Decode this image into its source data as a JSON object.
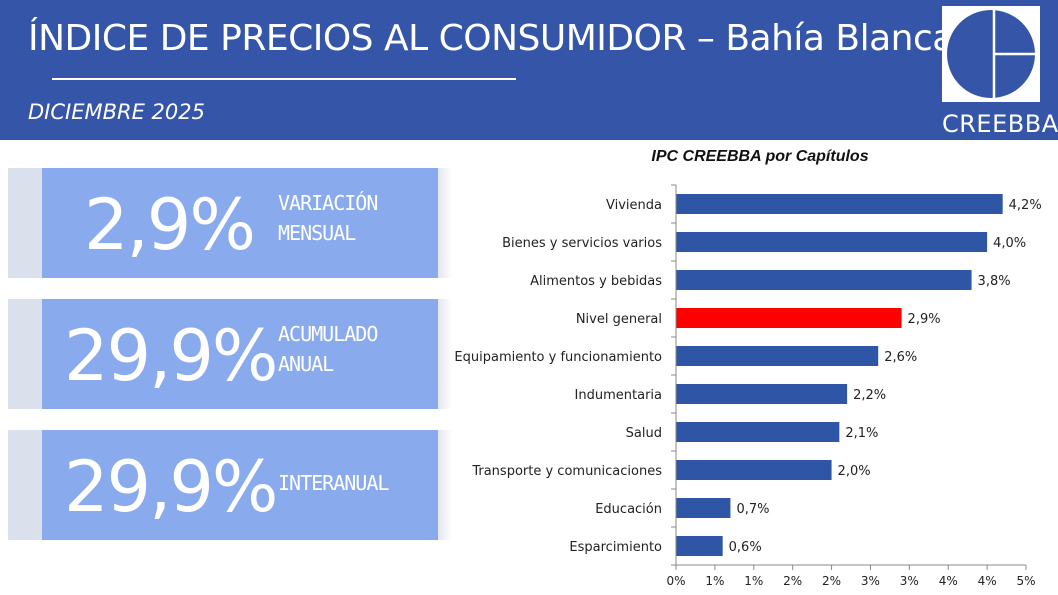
{
  "header": {
    "title": "ÍNDICE DE PRECIOS AL CONSUMIDOR – Bahía Blanca",
    "date": "DICIEMBRE 2025",
    "logo_text": "CREEBBA"
  },
  "colors": {
    "header_bg": "#3555a8",
    "kpi_bg": "#8aaaee",
    "bar": "#2f55a6",
    "bar_highlight": "#ff0000"
  },
  "kpis": [
    {
      "value": "2,9%",
      "label_line1": "VARIACIÓN",
      "label_line2": "MENSUAL"
    },
    {
      "value": "29,9%",
      "label_line1": "ACUMULADO",
      "label_line2": "ANUAL"
    },
    {
      "value": "29,9%",
      "label_line1": "INTERANUAL",
      "label_line2": ""
    }
  ],
  "chart_data": {
    "type": "bar",
    "orientation": "horizontal",
    "title": "IPC CREEBBA por Capítulos",
    "categories": [
      "Vivienda",
      "Bienes y servicios varios",
      "Alimentos y bebidas",
      "Nivel general",
      "Equipamiento y funcionamiento",
      "Indumentaria",
      "Salud",
      "Transporte y comunicaciones",
      "Educación",
      "Esparcimiento"
    ],
    "values": [
      4.2,
      4.0,
      3.8,
      2.9,
      2.6,
      2.2,
      2.1,
      2.0,
      0.7,
      0.6
    ],
    "value_labels": [
      "4,2%",
      "4,0%",
      "3,8%",
      "2,9%",
      "2,6%",
      "2,2%",
      "2,1%",
      "2,0%",
      "0,7%",
      "0,6%"
    ],
    "highlight_index": 3,
    "xlim": [
      0,
      4.5
    ],
    "ticks": [
      0,
      0.5,
      1,
      1.5,
      2,
      2.5,
      3,
      3.5,
      4,
      4.5
    ],
    "tick_labels": [
      "0%",
      "1%",
      "1%",
      "2%",
      "2%",
      "3%",
      "3%",
      "4%",
      "4%",
      "5%"
    ],
    "grid": false,
    "legend": "none"
  }
}
